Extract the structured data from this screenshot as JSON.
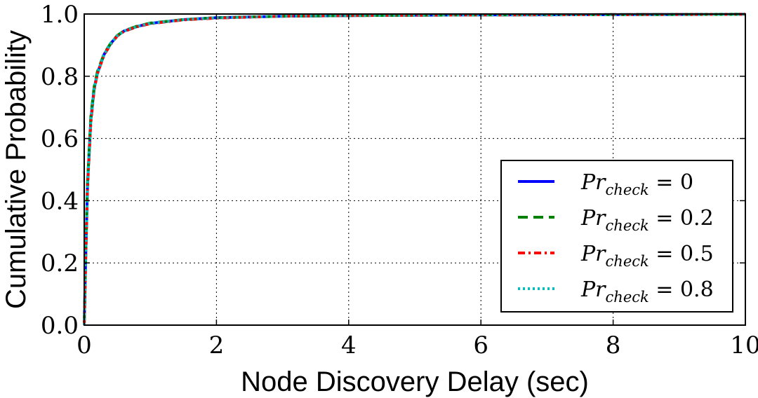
{
  "chart_data": {
    "type": "line",
    "xlabel": "Node Discovery Delay (sec)",
    "ylabel": "Cumulative Probability",
    "xlim": [
      0,
      10
    ],
    "ylim": [
      0,
      1.0
    ],
    "xticks": [
      "0",
      "2",
      "4",
      "6",
      "8",
      "10"
    ],
    "yticks": [
      "0.0",
      "0.2",
      "0.4",
      "0.6",
      "0.8",
      "1.0"
    ],
    "grid": true,
    "legend_position": "lower-right",
    "x": [
      0,
      0.02,
      0.05,
      0.1,
      0.15,
      0.2,
      0.3,
      0.4,
      0.5,
      0.6,
      0.8,
      1.0,
      1.5,
      2.0,
      3.0,
      4.0,
      6.0,
      8.0,
      10.0
    ],
    "series": [
      {
        "name": "Pr_check = 0",
        "legend_main": "Pr",
        "legend_sub": "check",
        "legend_value": " = 0",
        "color": "#0000ff",
        "style": "solid",
        "values": [
          0,
          0.2,
          0.45,
          0.66,
          0.76,
          0.81,
          0.87,
          0.905,
          0.93,
          0.945,
          0.96,
          0.97,
          0.982,
          0.988,
          0.993,
          0.995,
          0.997,
          0.998,
          0.999
        ]
      },
      {
        "name": "Pr_check = 0.2",
        "legend_main": "Pr",
        "legend_sub": "check",
        "legend_value": " = 0.2",
        "color": "#008000",
        "style": "dashed",
        "values": [
          0,
          0.21,
          0.46,
          0.67,
          0.765,
          0.815,
          0.872,
          0.906,
          0.931,
          0.946,
          0.961,
          0.971,
          0.982,
          0.988,
          0.993,
          0.995,
          0.997,
          0.998,
          0.999
        ]
      },
      {
        "name": "Pr_check = 0.5",
        "legend_main": "Pr",
        "legend_sub": "check",
        "legend_value": " = 0.5",
        "color": "#ff0000",
        "style": "dashdot",
        "values": [
          0,
          0.19,
          0.44,
          0.65,
          0.755,
          0.808,
          0.868,
          0.903,
          0.929,
          0.944,
          0.959,
          0.969,
          0.981,
          0.987,
          0.993,
          0.995,
          0.997,
          0.998,
          0.999
        ]
      },
      {
        "name": "Pr_check = 0.8",
        "legend_main": "Pr",
        "legend_sub": "check",
        "legend_value": " = 0.8",
        "color": "#00bfbf",
        "style": "dotted",
        "values": [
          0,
          0.2,
          0.45,
          0.66,
          0.76,
          0.81,
          0.87,
          0.905,
          0.93,
          0.945,
          0.96,
          0.97,
          0.982,
          0.988,
          0.993,
          0.995,
          0.997,
          0.998,
          0.999
        ]
      }
    ]
  }
}
